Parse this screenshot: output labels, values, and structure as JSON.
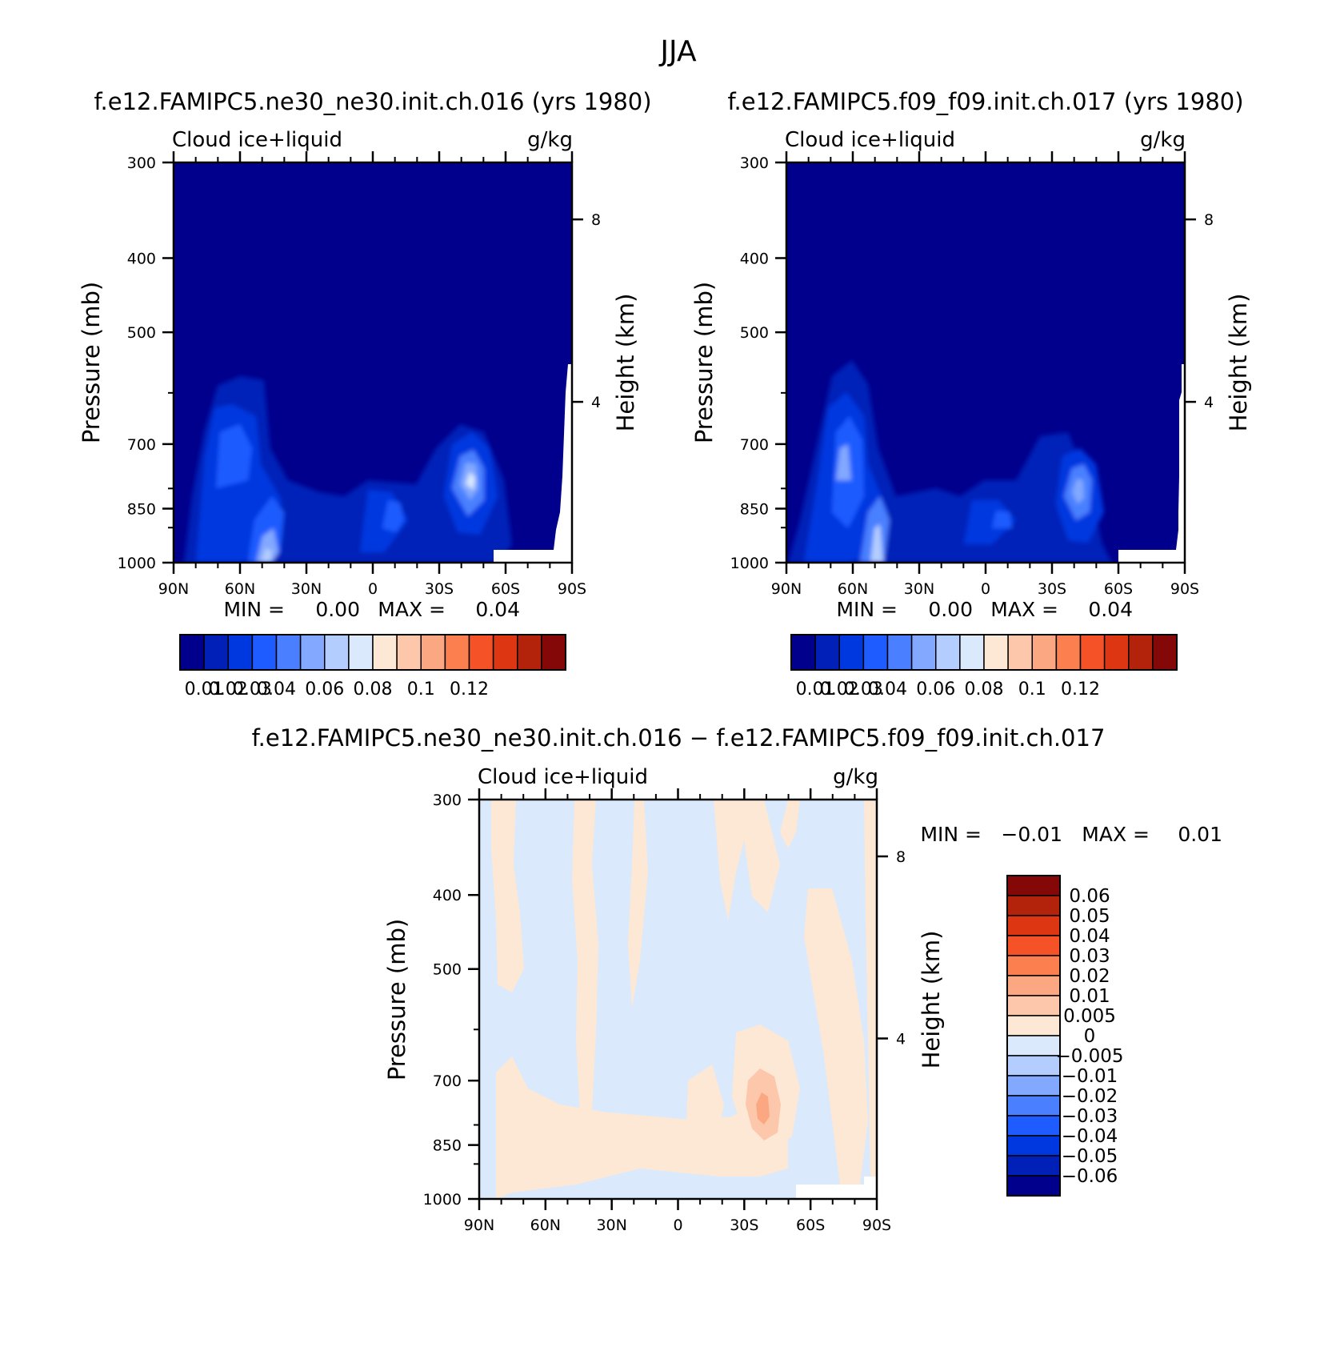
{
  "figure": {
    "title": "JJA"
  },
  "colors": {
    "frame": "#000000",
    "background": "#ffffff",
    "missing": "#ffffff"
  },
  "chart_data": [
    {
      "type": "heatmap",
      "panel": "top-left",
      "title": "f.e12.FAMIPC5.ne30_ne30.init.ch.016 (yrs 1980)",
      "variable": "Cloud ice+liquid",
      "units": "g/kg",
      "ylabel": "Pressure (mb)",
      "y2label": "Height (km)",
      "x_ticks": [
        "90N",
        "60N",
        "30N",
        "0",
        "30S",
        "60S",
        "90S"
      ],
      "x_range": [
        90,
        -90
      ],
      "y_ticks": [
        300,
        400,
        500,
        700,
        850,
        1000
      ],
      "y_range": [
        1000,
        300
      ],
      "y_scale": "log",
      "y2_ticks": [
        8,
        4
      ],
      "stats": {
        "min_label": "MIN =",
        "min": "0.00",
        "max_label": "MAX =",
        "max": "0.04"
      },
      "colorbar": {
        "orientation": "horizontal",
        "labels": [
          "0.01",
          "0.02",
          "0.03",
          "0.04",
          "0.06",
          "0.08",
          "0.1",
          "0.12"
        ],
        "colors": [
          "#00008c",
          "#0020b8",
          "#0038e0",
          "#1f5cff",
          "#4a80ff",
          "#82a8ff",
          "#b4cdff",
          "#daeafc",
          "#fde7d5",
          "#fcc7aa",
          "#fba882",
          "#fb7f4f",
          "#f65228",
          "#dc3613",
          "#b3220b",
          "#850808"
        ]
      },
      "features": [
        {
          "type": "background",
          "value": 0.0
        },
        {
          "lat": 68,
          "p": 790,
          "value": 0.025
        },
        {
          "lat": 47,
          "p": 930,
          "value": 0.035
        },
        {
          "lat": -9,
          "p": 890,
          "value": 0.015
        },
        {
          "lat": -38,
          "p": 840,
          "value": 0.04
        }
      ]
    },
    {
      "type": "heatmap",
      "panel": "top-right",
      "title": "f.e12.FAMIPC5.f09_f09.init.ch.017 (yrs 1980)",
      "variable": "Cloud ice+liquid",
      "units": "g/kg",
      "ylabel": "Pressure (mb)",
      "y2label": "Height (km)",
      "x_ticks": [
        "90N",
        "60N",
        "30N",
        "0",
        "30S",
        "60S",
        "90S"
      ],
      "x_range": [
        90,
        -90
      ],
      "y_ticks": [
        300,
        400,
        500,
        700,
        850,
        1000
      ],
      "y_range": [
        1000,
        300
      ],
      "y_scale": "log",
      "y2_ticks": [
        8,
        4
      ],
      "stats": {
        "min_label": "MIN =",
        "min": "0.00",
        "max_label": "MAX =",
        "max": "0.04"
      },
      "colorbar": {
        "orientation": "horizontal",
        "labels": [
          "0.01",
          "0.02",
          "0.03",
          "0.04",
          "0.06",
          "0.08",
          "0.1",
          "0.12"
        ],
        "colors": [
          "#00008c",
          "#0020b8",
          "#0038e0",
          "#1f5cff",
          "#4a80ff",
          "#82a8ff",
          "#b4cdff",
          "#daeafc",
          "#fde7d5",
          "#fcc7aa",
          "#fba882",
          "#fb7f4f",
          "#f65228",
          "#dc3613",
          "#b3220b",
          "#850808"
        ]
      },
      "features": [
        {
          "type": "background",
          "value": 0.0
        },
        {
          "lat": 68,
          "p": 790,
          "value": 0.03
        },
        {
          "lat": 46,
          "p": 930,
          "value": 0.04
        },
        {
          "lat": -9,
          "p": 890,
          "value": 0.02
        },
        {
          "lat": -38,
          "p": 850,
          "value": 0.035
        }
      ]
    },
    {
      "type": "heatmap",
      "panel": "bottom",
      "title": "f.e12.FAMIPC5.ne30_ne30.init.ch.016 − f.e12.FAMIPC5.f09_f09.init.ch.017",
      "variable": "Cloud ice+liquid",
      "units": "g/kg",
      "ylabel": "Pressure (mb)",
      "y2label": "Height (km)",
      "x_ticks": [
        "90N",
        "60N",
        "30N",
        "0",
        "30S",
        "60S",
        "90S"
      ],
      "x_range": [
        90,
        -90
      ],
      "y_ticks": [
        300,
        400,
        500,
        700,
        850,
        1000
      ],
      "y_range": [
        1000,
        300
      ],
      "y_scale": "log",
      "y2_ticks": [
        8,
        4
      ],
      "stats": {
        "min_label": "MIN =",
        "min": "−0.01",
        "max_label": "MAX =",
        "max": "0.01"
      },
      "colorbar": {
        "orientation": "vertical",
        "labels": [
          "0.06",
          "0.05",
          "0.04",
          "0.03",
          "0.02",
          "0.01",
          "0.005",
          "0",
          "−0.005",
          "−0.01",
          "−0.02",
          "−0.03",
          "−0.04",
          "−0.05",
          "−0.06"
        ],
        "colors": [
          "#850808",
          "#b3220b",
          "#dc3613",
          "#f65228",
          "#fb7f4f",
          "#fba882",
          "#fcc7aa",
          "#fde7d5",
          "#daeafc",
          "#b4cdff",
          "#82a8ff",
          "#4a80ff",
          "#1f5cff",
          "#0038e0",
          "#0020b8",
          "#00008c"
        ]
      },
      "features": [
        {
          "type": "background",
          "value": -0.002
        },
        {
          "lat": -40,
          "p": 850,
          "value": 0.01
        },
        {
          "lat": -30,
          "p": 320,
          "value": 0.003
        },
        {
          "lat": -70,
          "p": 600,
          "value": 0.003
        }
      ]
    }
  ]
}
